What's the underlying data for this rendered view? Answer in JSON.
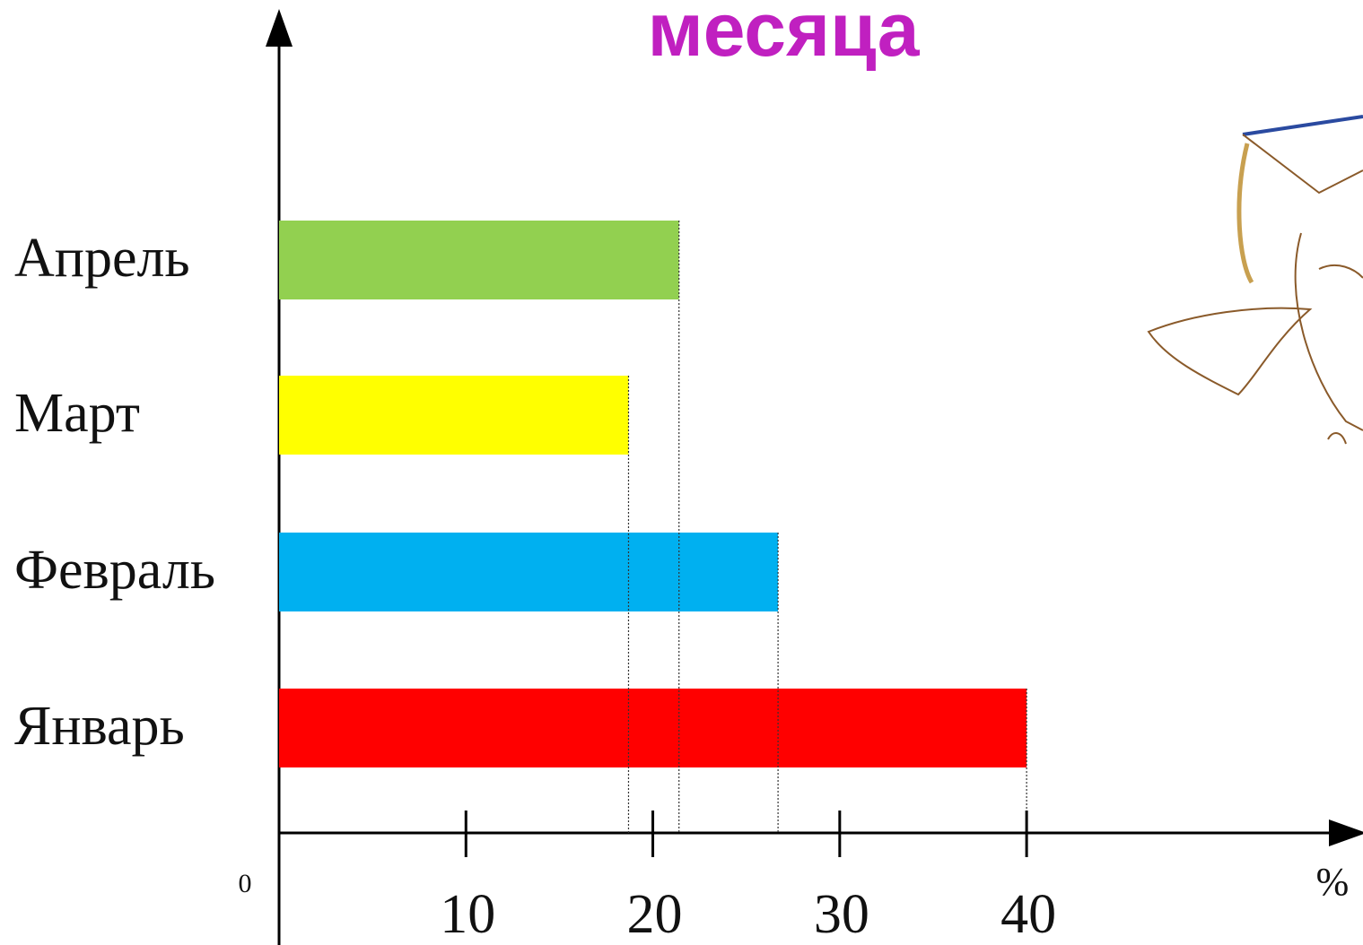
{
  "chart_data": {
    "type": "bar",
    "orientation": "horizontal",
    "title": "месяца",
    "categories": [
      "Январь",
      "Февраль",
      "Март",
      "Апрель"
    ],
    "values": [
      40,
      26.7,
      18.7,
      21.4
    ],
    "colors": [
      "#ff0000",
      "#00b0f0",
      "#ffff00",
      "#92d050"
    ],
    "xlim": [
      0,
      58
    ],
    "xticks": [
      0,
      10,
      20,
      30,
      40
    ],
    "xlabel": "%"
  }
}
